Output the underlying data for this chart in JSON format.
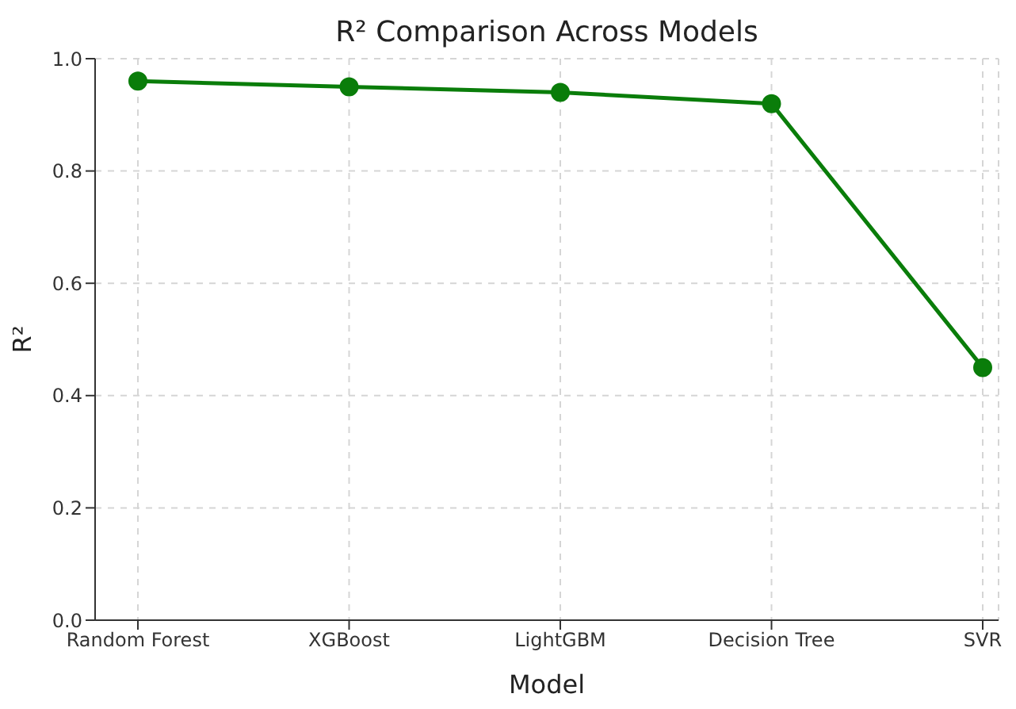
{
  "chart_data": {
    "type": "line",
    "title": "R² Comparison Across Models",
    "xlabel": "Model",
    "ylabel": "R²",
    "categories": [
      "Random Forest",
      "XGBoost",
      "LightGBM",
      "Decision Tree",
      "SVR"
    ],
    "series": [
      {
        "color": "#0a7d0a",
        "values": [
          0.96,
          0.95,
          0.94,
          0.92,
          0.45
        ]
      }
    ],
    "ylim": [
      0,
      1
    ],
    "yticks": [
      {
        "value": 0,
        "label": "0.0"
      },
      0.2,
      0.4,
      0.6,
      0.8,
      {
        "value": 1,
        "label": "1.0"
      }
    ],
    "grid": true,
    "marker": "circle",
    "line_style": "solid"
  }
}
